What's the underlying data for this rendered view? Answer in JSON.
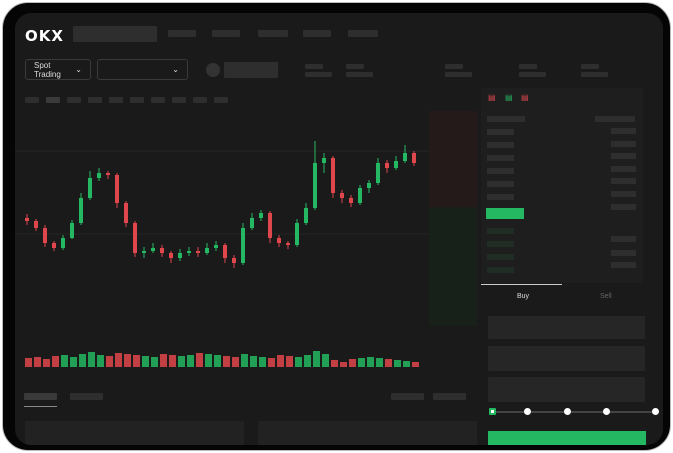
{
  "header": {
    "logo": "OKX"
  },
  "toolbar": {
    "market_type": "Spot Trading",
    "pair_select": ""
  },
  "order_form": {
    "tabs": [
      "Buy",
      "Sell"
    ],
    "active_tab": "Buy",
    "leverage_steps": 5,
    "selected_step": 0
  },
  "colors": {
    "up": "#25b862",
    "down": "#e0474c",
    "background": "#1a1a1a"
  },
  "chart_data": {
    "type": "candlestick",
    "candles": [
      [
        95,
        92,
        99,
        88
      ],
      [
        92,
        85,
        94,
        82
      ],
      [
        85,
        70,
        88,
        66
      ],
      [
        70,
        65,
        72,
        62
      ],
      [
        65,
        75,
        78,
        63
      ],
      [
        75,
        90,
        93,
        74
      ],
      [
        90,
        115,
        120,
        88
      ],
      [
        115,
        135,
        142,
        113
      ],
      [
        135,
        140,
        145,
        132
      ],
      [
        140,
        138,
        142,
        134
      ],
      [
        138,
        110,
        140,
        105
      ],
      [
        110,
        90,
        112,
        86
      ],
      [
        90,
        60,
        92,
        56
      ],
      [
        60,
        62,
        66,
        55
      ],
      [
        62,
        65,
        70,
        60
      ],
      [
        65,
        60,
        68,
        56
      ],
      [
        60,
        55,
        62,
        50
      ],
      [
        55,
        60,
        64,
        52
      ],
      [
        60,
        62,
        66,
        57
      ],
      [
        62,
        60,
        66,
        56
      ],
      [
        60,
        65,
        70,
        58
      ],
      [
        65,
        68,
        72,
        62
      ],
      [
        68,
        55,
        70,
        50
      ],
      [
        55,
        50,
        58,
        45
      ],
      [
        50,
        85,
        90,
        48
      ],
      [
        85,
        95,
        100,
        83
      ],
      [
        95,
        100,
        103,
        92
      ],
      [
        100,
        75,
        102,
        70
      ],
      [
        75,
        70,
        78,
        66
      ],
      [
        70,
        68,
        72,
        64
      ],
      [
        68,
        90,
        94,
        66
      ],
      [
        90,
        105,
        110,
        88
      ],
      [
        105,
        150,
        172,
        103
      ],
      [
        150,
        155,
        160,
        140
      ],
      [
        155,
        120,
        157,
        115
      ],
      [
        120,
        115,
        123,
        110
      ],
      [
        115,
        110,
        118,
        106
      ],
      [
        110,
        125,
        128,
        108
      ],
      [
        125,
        130,
        133,
        120
      ],
      [
        130,
        150,
        155,
        128
      ],
      [
        150,
        145,
        153,
        140
      ],
      [
        145,
        152,
        157,
        143
      ],
      [
        152,
        160,
        168,
        150
      ],
      [
        160,
        150,
        162,
        147
      ]
    ],
    "volume": [
      9,
      10,
      8,
      11,
      12,
      10,
      13,
      15,
      12,
      11,
      14,
      13,
      12,
      11,
      10,
      13,
      12,
      11,
      12,
      14,
      13,
      12,
      11,
      10,
      13,
      11,
      10,
      9,
      12,
      11,
      10,
      12,
      16,
      13,
      7,
      5,
      8,
      9,
      10,
      9,
      8,
      7,
      6,
      5
    ]
  }
}
